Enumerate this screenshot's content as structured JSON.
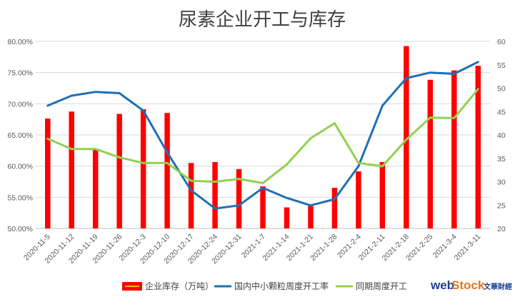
{
  "chart_data": {
    "type": "bar",
    "title": "尿素企业开工与库存",
    "categories": [
      "2020-11-5",
      "2020-11-12",
      "2020-11-19",
      "2020-11-26",
      "2020-12-3",
      "2020-12-10",
      "2020-12-17",
      "2020-12-24",
      "2020-12-31",
      "2021-1-7",
      "2021-1-14",
      "2021-1-21",
      "2021-1-28",
      "2021-2-4",
      "2021-2-11",
      "2021-2-18",
      "2021-2-25",
      "2021-3-4",
      "2021-3-11"
    ],
    "left_axis": {
      "min": 0.5,
      "max": 0.8,
      "ticks": [
        "50.00%",
        "55.00%",
        "60.00%",
        "65.00%",
        "70.00%",
        "75.00%",
        "80.00%"
      ]
    },
    "right_axis": {
      "min": 20,
      "max": 60,
      "ticks": [
        "20",
        "25",
        "30",
        "35",
        "40",
        "45",
        "50",
        "55",
        "60"
      ]
    },
    "grid": true,
    "legend_position": "bottom",
    "series": [
      {
        "name": "企业库存（万吨）",
        "kind": "bar",
        "axis": "right",
        "color": "#ff0000",
        "values": [
          43.5,
          45.0,
          37.0,
          44.5,
          45.5,
          44.7,
          34.0,
          34.2,
          32.7,
          29.0,
          24.5,
          24.8,
          28.7,
          32.2,
          34.2,
          59.0,
          51.8,
          53.8,
          54.8
        ]
      },
      {
        "name": "国内中小颗粒周度开工率",
        "kind": "line",
        "axis": "left",
        "color": "#1f6fb5",
        "values": [
          0.697,
          0.713,
          0.719,
          0.717,
          0.689,
          0.622,
          0.561,
          0.532,
          0.537,
          0.565,
          0.549,
          0.537,
          0.547,
          0.6,
          0.697,
          0.741,
          0.75,
          0.748,
          0.767
        ]
      },
      {
        "name": "同期周度开工",
        "kind": "line",
        "axis": "right",
        "color": "#92d050",
        "values": [
          39.2,
          37.0,
          37.0,
          35.2,
          34.0,
          34.0,
          30.2,
          30.0,
          30.6,
          29.7,
          33.7,
          39.3,
          42.5,
          34.0,
          33.3,
          39.0,
          43.7,
          43.6,
          49.8
        ]
      }
    ]
  },
  "watermark": {
    "web": "web",
    "stock": "Stock",
    "cn": "文華財經"
  }
}
